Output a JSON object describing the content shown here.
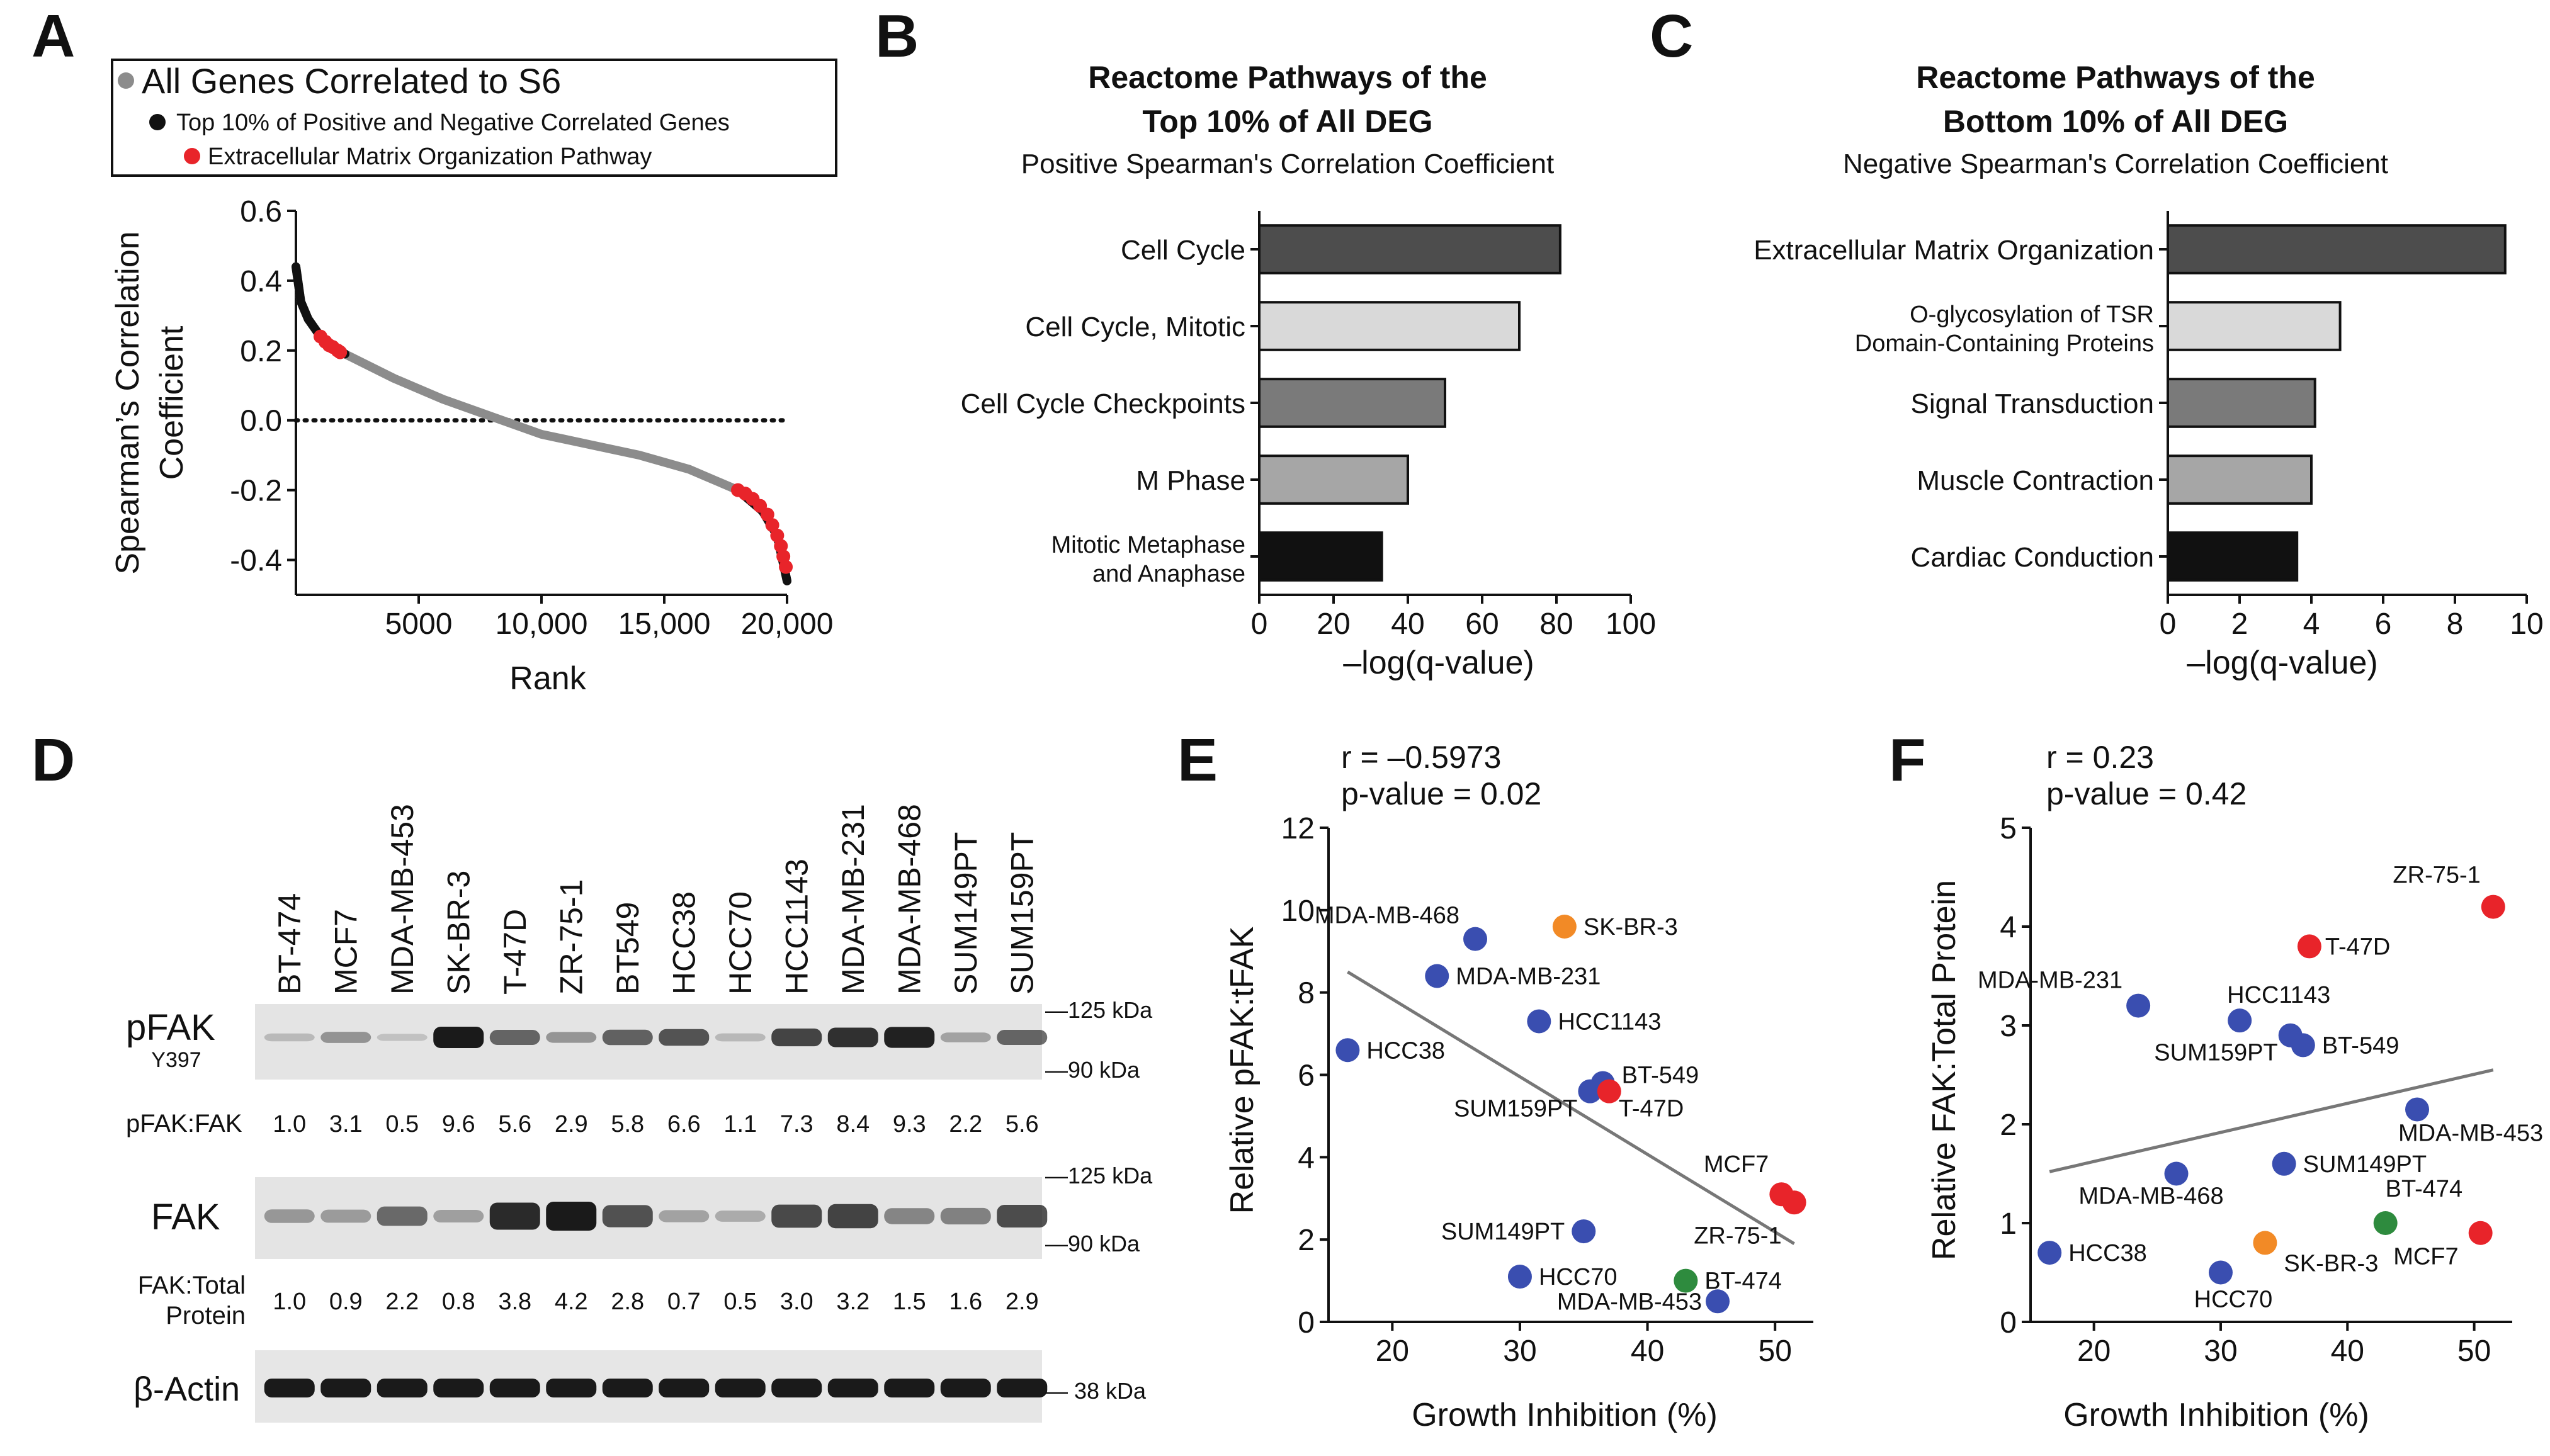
{
  "panels": {
    "a": "A",
    "b": "B",
    "c": "C",
    "d": "D",
    "e": "E",
    "f": "F"
  },
  "colors": {
    "bar1": "#4d4d4d",
    "bar2": "#d9d9d9",
    "bar3": "#7a7a7a",
    "bar4": "#a6a6a6",
    "bar5": "#111111",
    "grey": "#8c8c8c",
    "red": "#e8242a",
    "blue": "#3a4eb0",
    "orange": "#f28a26",
    "green": "#2e8b3e"
  },
  "chart_data": [
    {
      "type": "line",
      "panel": "A",
      "legend": [
        "All Genes Correlated to S6",
        "Top 10% of Positive and Negative Correlated Genes",
        "Extracellular Matrix Organization Pathway"
      ],
      "ylabel": "Spearman's Correlation Coefficient",
      "xlabel": "Rank",
      "ylim": [
        -0.5,
        0.6
      ],
      "xlim": [
        0,
        20000
      ],
      "yticks": [
        "0.6",
        "0.4",
        "0.2",
        "0.0",
        "-0.2",
        "-0.4"
      ],
      "xticks": [
        "5000",
        "10,000",
        "15,000",
        "20,000"
      ],
      "curve": [
        [
          0,
          0.44
        ],
        [
          200,
          0.34
        ],
        [
          500,
          0.29
        ],
        [
          1000,
          0.24
        ],
        [
          2000,
          0.19
        ],
        [
          4000,
          0.12
        ],
        [
          6000,
          0.06
        ],
        [
          8000,
          0.01
        ],
        [
          10000,
          -0.04
        ],
        [
          12000,
          -0.07
        ],
        [
          14000,
          -0.1
        ],
        [
          16000,
          -0.14
        ],
        [
          18000,
          -0.2
        ],
        [
          19000,
          -0.26
        ],
        [
          19600,
          -0.33
        ],
        [
          20000,
          -0.46
        ]
      ],
      "ecm_points": [
        [
          1000,
          0.24
        ],
        [
          1200,
          0.225
        ],
        [
          1350,
          0.215
        ],
        [
          1500,
          0.21
        ],
        [
          1700,
          0.2
        ],
        [
          1800,
          0.195
        ],
        [
          18000,
          -0.2
        ],
        [
          18300,
          -0.21
        ],
        [
          18600,
          -0.225
        ],
        [
          18900,
          -0.245
        ],
        [
          19200,
          -0.27
        ],
        [
          19400,
          -0.3
        ],
        [
          19600,
          -0.33
        ],
        [
          19750,
          -0.36
        ],
        [
          19850,
          -0.39
        ],
        [
          19950,
          -0.42
        ]
      ]
    },
    {
      "type": "bar",
      "panel": "B",
      "title": "Reactome Pathways of the Top 10% of All DEG",
      "title_line1": "Reactome Pathways of the",
      "title_line2": "Top 10% of All DEG",
      "subtitle": "Positive Spearman's Correlation Coefficient",
      "categories": [
        "Cell Cycle",
        "Cell Cycle, Mitotic",
        "Cell Cycle Checkpoints",
        "M Phase",
        "Mitotic Metaphase and Anaphase"
      ],
      "category_lines": [
        [
          "Cell Cycle"
        ],
        [
          "Cell Cycle, Mitotic"
        ],
        [
          "Cell Cycle Checkpoints"
        ],
        [
          "M Phase"
        ],
        [
          "Mitotic Metaphase",
          "and Anaphase"
        ]
      ],
      "values": [
        81,
        70,
        50,
        40,
        33
      ],
      "xlabel": "–log(q-value)",
      "xlim": [
        0,
        100
      ],
      "xticks": [
        "0",
        "20",
        "40",
        "60",
        "80",
        "100"
      ]
    },
    {
      "type": "bar",
      "panel": "C",
      "title": "Reactome Pathways of the Bottom 10% of All DEG",
      "title_line1": "Reactome Pathways of the",
      "title_line2": "Bottom 10% of All DEG",
      "subtitle": "Negative Spearman's Correlation Coefficient",
      "categories": [
        "Extracellular Matrix Organization",
        "O-glycosylation of TSR Domain-Containing Proteins",
        "Signal Transduction",
        "Muscle Contraction",
        "Cardiac Conduction"
      ],
      "category_lines": [
        [
          "Extracellular Matrix Organization"
        ],
        [
          "O-glycosylation of TSR",
          "Domain-Containing Proteins"
        ],
        [
          "Signal Transduction"
        ],
        [
          "Muscle Contraction"
        ],
        [
          "Cardiac Conduction"
        ]
      ],
      "values": [
        9.4,
        4.8,
        4.1,
        4.0,
        3.6
      ],
      "xlabel": "–log(q-value)",
      "xlim": [
        0,
        10
      ],
      "xticks": [
        "0",
        "2",
        "4",
        "6",
        "8",
        "10"
      ]
    },
    {
      "type": "scatter",
      "panel": "E",
      "stat_r": "r = –0.5973",
      "stat_p": "p-value = 0.02",
      "xlabel": "Growth Inhibition (%)",
      "ylabel": "Relative pFAK:tFAK",
      "xlim": [
        15,
        53
      ],
      "ylim": [
        0,
        12
      ],
      "xticks": [
        "20",
        "30",
        "40",
        "50"
      ],
      "yticks": [
        "0",
        "2",
        "4",
        "6",
        "8",
        "10",
        "12"
      ],
      "trend": [
        [
          16.5,
          8.5
        ],
        [
          51.5,
          1.9
        ]
      ],
      "points": [
        {
          "label": "MDA-MB-468",
          "x": 26.5,
          "y": 9.3,
          "group": "blue"
        },
        {
          "label": "SK-BR-3",
          "x": 33.5,
          "y": 9.6,
          "group": "orange"
        },
        {
          "label": "MDA-MB-231",
          "x": 23.5,
          "y": 8.4,
          "group": "blue"
        },
        {
          "label": "HCC1143",
          "x": 31.5,
          "y": 7.3,
          "group": "blue"
        },
        {
          "label": "HCC38",
          "x": 16.5,
          "y": 6.6,
          "group": "blue"
        },
        {
          "label": "BT-549",
          "x": 36.5,
          "y": 5.8,
          "group": "blue"
        },
        {
          "label": "SUM159PT",
          "x": 35.5,
          "y": 5.6,
          "group": "blue"
        },
        {
          "label": "T-47D",
          "x": 37.0,
          "y": 5.6,
          "group": "red"
        },
        {
          "label": "MCF7",
          "x": 50.5,
          "y": 3.1,
          "group": "red"
        },
        {
          "label": "ZR-75-1",
          "x": 51.5,
          "y": 2.9,
          "group": "red"
        },
        {
          "label": "SUM149PT",
          "x": 35.0,
          "y": 2.2,
          "group": "blue"
        },
        {
          "label": "HCC70",
          "x": 30.0,
          "y": 1.1,
          "group": "blue"
        },
        {
          "label": "BT-474",
          "x": 43.0,
          "y": 1.0,
          "group": "green"
        },
        {
          "label": "MDA-MB-453",
          "x": 45.5,
          "y": 0.5,
          "group": "blue"
        }
      ]
    },
    {
      "type": "scatter",
      "panel": "F",
      "stat_r": "r = 0.23",
      "stat_p": "p-value = 0.42",
      "xlabel": "Growth Inhibition (%)",
      "ylabel": "Relative FAK:Total Protein",
      "xlim": [
        15,
        53
      ],
      "ylim": [
        0,
        5
      ],
      "xticks": [
        "20",
        "30",
        "40",
        "50"
      ],
      "yticks": [
        "0",
        "1",
        "2",
        "3",
        "4",
        "5"
      ],
      "trend": [
        [
          16.5,
          1.52
        ],
        [
          51.5,
          2.55
        ]
      ],
      "points": [
        {
          "label": "ZR-75-1",
          "x": 51.5,
          "y": 4.2,
          "group": "red"
        },
        {
          "label": "T-47D",
          "x": 37.0,
          "y": 3.8,
          "group": "red"
        },
        {
          "label": "MDA-MB-231",
          "x": 23.5,
          "y": 3.2,
          "group": "blue"
        },
        {
          "label": "HCC1143",
          "x": 31.5,
          "y": 3.05,
          "group": "blue"
        },
        {
          "label": "SUM159PT",
          "x": 35.5,
          "y": 2.9,
          "group": "blue"
        },
        {
          "label": "BT-549",
          "x": 36.5,
          "y": 2.8,
          "group": "blue"
        },
        {
          "label": "MDA-MB-453",
          "x": 45.5,
          "y": 2.15,
          "group": "blue"
        },
        {
          "label": "SUM149PT",
          "x": 35.0,
          "y": 1.6,
          "group": "blue"
        },
        {
          "label": "MDA-MB-468",
          "x": 26.5,
          "y": 1.5,
          "group": "blue"
        },
        {
          "label": "BT-474",
          "x": 43.0,
          "y": 1.0,
          "group": "green"
        },
        {
          "label": "MCF7",
          "x": 50.5,
          "y": 0.9,
          "group": "red"
        },
        {
          "label": "HCC38",
          "x": 16.5,
          "y": 0.7,
          "group": "blue"
        },
        {
          "label": "SK-BR-3",
          "x": 33.5,
          "y": 0.8,
          "group": "orange"
        },
        {
          "label": "HCC70",
          "x": 30.0,
          "y": 0.5,
          "group": "blue"
        }
      ]
    }
  ],
  "western_blot": {
    "lanes": [
      "BT-474",
      "MCF7",
      "MDA-MB-453",
      "SK-BR-3",
      "T-47D",
      "ZR-75-1",
      "BT549",
      "HCC38",
      "HCC70",
      "HCC1143",
      "MDA-MB-231",
      "MDA-MB-468",
      "SUM149PT",
      "SUM159PT"
    ],
    "pfak_label": "pFAK",
    "pfak_site": "Y397",
    "ratio1_label": "pFAK:FAK",
    "ratio1": [
      "1.0",
      "3.1",
      "0.5",
      "9.6",
      "5.6",
      "2.9",
      "5.8",
      "6.6",
      "1.1",
      "7.3",
      "8.4",
      "9.3",
      "2.2",
      "5.6"
    ],
    "fak_label": "FAK",
    "ratio2_label_line1": "FAK:Total",
    "ratio2_label_line2": "Protein",
    "ratio2": [
      "1.0",
      "0.9",
      "2.2",
      "0.8",
      "3.8",
      "4.2",
      "2.8",
      "0.7",
      "0.5",
      "3.0",
      "3.2",
      "1.5",
      "1.6",
      "2.9"
    ],
    "actin_label": "β-Actin",
    "kda_125": "—125 kDa",
    "kda_90": "—90 kDa",
    "kda_38": "— 38 kDa"
  }
}
